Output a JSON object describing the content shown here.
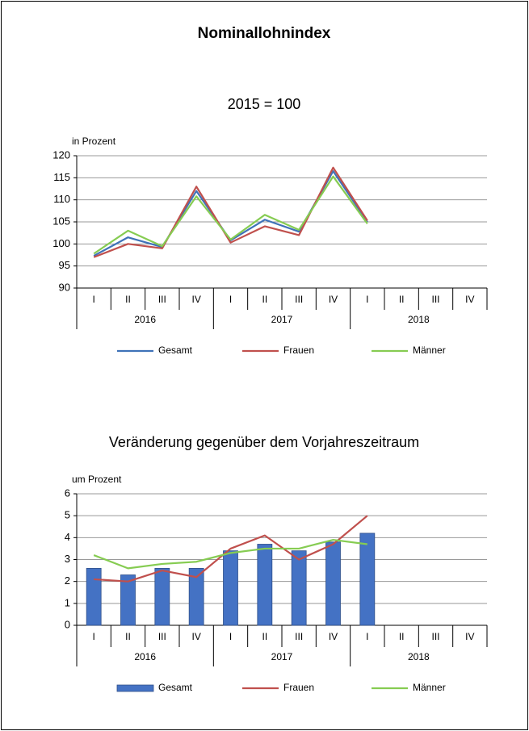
{
  "title": "Nominallohnindex",
  "chart_data": [
    {
      "type": "line",
      "title": "2015 = 100",
      "ylabel": "in Prozent",
      "categories": [
        "I",
        "II",
        "III",
        "IV",
        "I",
        "II",
        "III",
        "IV",
        "I",
        "II",
        "III",
        "IV"
      ],
      "groups": [
        "2016",
        "2017",
        "2018"
      ],
      "ylim": [
        90,
        120
      ],
      "yticks": [
        90,
        95,
        100,
        105,
        110,
        115,
        120
      ],
      "grid": true,
      "series": [
        {
          "name": "Gesamt",
          "type": "line",
          "color": "#3f72b8",
          "values": [
            97.3,
            101.5,
            99.3,
            112,
            100.8,
            105.5,
            102.8,
            116.5,
            105,
            null,
            null,
            null
          ]
        },
        {
          "name": "Frauen",
          "type": "line",
          "color": "#c0504d",
          "values": [
            97,
            100,
            99,
            113,
            100.3,
            104,
            102,
            117.3,
            105.3,
            null,
            null,
            null
          ]
        },
        {
          "name": "Männer",
          "type": "line",
          "color": "#86cc52",
          "values": [
            97.8,
            103,
            99.5,
            110.8,
            101,
            106.6,
            103.2,
            115.3,
            104.6,
            null,
            null,
            null
          ]
        }
      ]
    },
    {
      "type": "bar",
      "title": "Veränderung gegenüber dem Vorjahreszeitraum",
      "ylabel": "um Prozent",
      "categories": [
        "I",
        "II",
        "III",
        "IV",
        "I",
        "II",
        "III",
        "IV",
        "I",
        "II",
        "III",
        "IV"
      ],
      "groups": [
        "2016",
        "2017",
        "2018"
      ],
      "ylim": [
        0,
        6
      ],
      "yticks": [
        0,
        1,
        2,
        3,
        4,
        5,
        6
      ],
      "grid": true,
      "series": [
        {
          "name": "Gesamt",
          "type": "bar",
          "color": "#4472c4",
          "values": [
            2.6,
            2.3,
            2.6,
            2.6,
            3.4,
            3.7,
            3.4,
            3.8,
            4.2,
            null,
            null,
            null
          ]
        },
        {
          "name": "Frauen",
          "type": "line",
          "color": "#c0504d",
          "values": [
            2.1,
            2.0,
            2.5,
            2.2,
            3.5,
            4.1,
            3.0,
            3.7,
            5.0,
            null,
            null,
            null
          ]
        },
        {
          "name": "Männer",
          "type": "line",
          "color": "#86cc52",
          "values": [
            3.2,
            2.6,
            2.8,
            2.9,
            3.3,
            3.5,
            3.5,
            3.9,
            3.7,
            null,
            null,
            null
          ]
        }
      ]
    }
  ]
}
